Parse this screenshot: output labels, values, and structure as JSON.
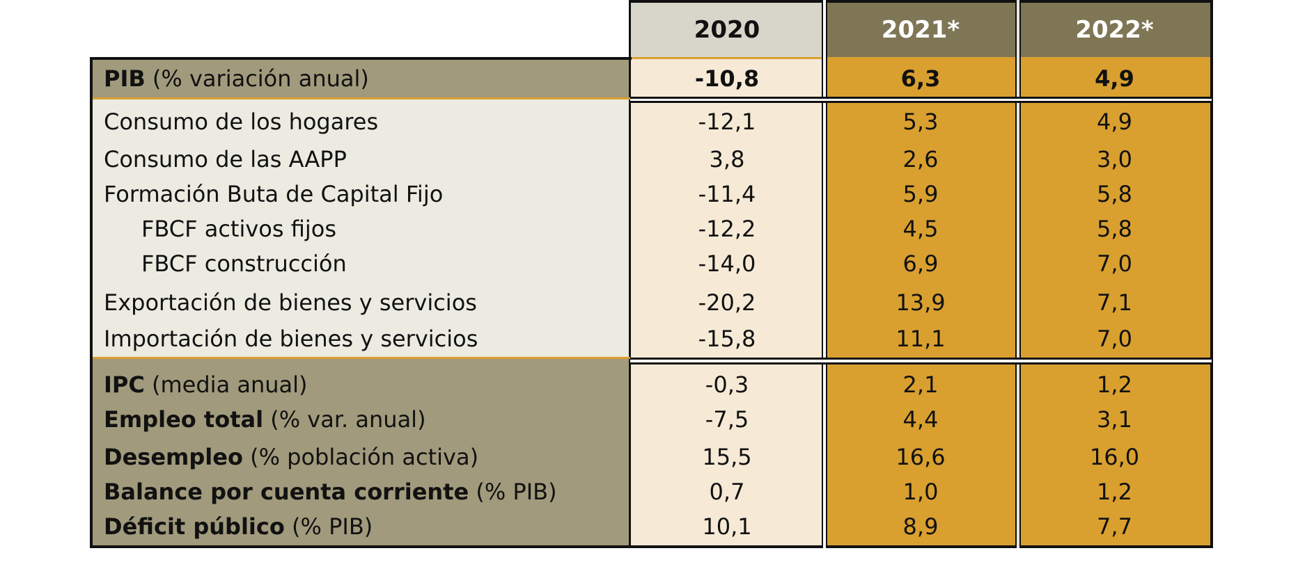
{
  "header": {
    "col_2020": "2020",
    "col_2021": "2021*",
    "col_2022": "2022*"
  },
  "pib": {
    "label_bold": "PIB",
    "label_sub": "(% variación anual)",
    "v2020": "-10,8",
    "v2021": "6,3",
    "v2022": "4,9"
  },
  "components": [
    {
      "label": "Consumo de los hogares",
      "v2020": "-12,1",
      "v2021": "5,3",
      "v2022": "4,9"
    },
    {
      "label": "Consumo de las AAPP",
      "v2020": "3,8",
      "v2021": "2,6",
      "v2022": "3,0"
    },
    {
      "label": "Formación Buta de Capital Fijo",
      "v2020": "-11,4",
      "v2021": "5,9",
      "v2022": "5,8"
    },
    {
      "label": "FBCF activos fijos",
      "v2020": "-12,2",
      "v2021": "4,5",
      "v2022": "5,8"
    },
    {
      "label": "FBCF construcción",
      "v2020": "-14,0",
      "v2021": "6,9",
      "v2022": "7,0"
    },
    {
      "label": "Exportación de bienes y servicios",
      "v2020": "-20,2",
      "v2021": "13,9",
      "v2022": "7,1"
    },
    {
      "label": "Importación de bienes y servicios",
      "v2020": "-15,8",
      "v2021": "11,1",
      "v2022": "7,0"
    }
  ],
  "indicators": [
    {
      "label_bold": "IPC",
      "label_sub": "(media anual)",
      "v2020": "-0,3",
      "v2021": "2,1",
      "v2022": "1,2"
    },
    {
      "label_bold": "Empleo total",
      "label_sub": "(% var. anual)",
      "v2020": "-7,5",
      "v2021": "4,4",
      "v2022": "3,1"
    },
    {
      "label_bold": "Desempleo",
      "label_sub": "(% población activa)",
      "v2020": "15,5",
      "v2021": "16,6",
      "v2022": "16,0"
    },
    {
      "label_bold": "Balance por cuenta corriente",
      "label_sub": "(% PIB)",
      "v2020": "0,7",
      "v2021": "1,0",
      "v2022": "1,2"
    },
    {
      "label_bold": "Déficit público",
      "label_sub": "(% PIB)",
      "v2020": "10,1",
      "v2021": "8,9",
      "v2022": "7,7"
    }
  ],
  "colors": {
    "header_2020": "#d8d6cb",
    "header_forecast": "#7f7656",
    "label_dark": "#a19a7c",
    "label_light": "#ecebe1",
    "col_2020": "#f6ead6",
    "col_forecast": "#d9a030",
    "accent_line": "#d9a030"
  }
}
